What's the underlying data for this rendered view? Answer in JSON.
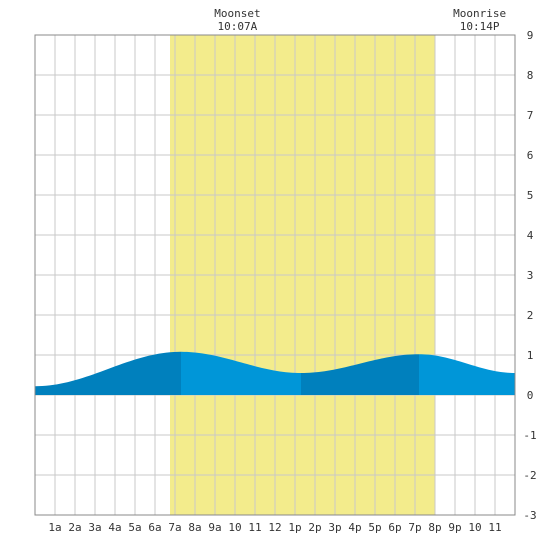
{
  "chart_data": {
    "type": "area",
    "x_tick_labels": [
      "1a",
      "2a",
      "3a",
      "4a",
      "5a",
      "6a",
      "7a",
      "8a",
      "9a",
      "10",
      "11",
      "12",
      "1p",
      "2p",
      "3p",
      "4p",
      "5p",
      "6p",
      "7p",
      "8p",
      "9p",
      "10",
      "11"
    ],
    "y_ticks": [
      9,
      8,
      7,
      6,
      5,
      4,
      3,
      2,
      1,
      0,
      -1,
      -2,
      -3
    ],
    "ylim": [
      -3,
      9
    ],
    "xlim_hours": [
      0,
      24
    ],
    "grid": true,
    "daylight_hours": [
      6.75,
      20.0
    ],
    "top_labels": [
      {
        "title": "Moonset",
        "time": "10:07A",
        "hour": 10.12
      },
      {
        "title": "Moonrise",
        "time": "10:14P",
        "hour": 22.23
      }
    ],
    "tide_extremes": [
      {
        "hour": 0.0,
        "height": 0.22
      },
      {
        "hour": 7.3,
        "height": 1.08
      },
      {
        "hour": 13.3,
        "height": 0.55
      },
      {
        "hour": 19.2,
        "height": 1.02
      },
      {
        "hour": 24.0,
        "height": 0.55
      }
    ],
    "colors": {
      "daylight": "#f3ec8c",
      "tide_fill": "#0096d8",
      "tide_fill_dark": "#0080bd",
      "grid": "#c8c8c8",
      "border": "#888888"
    }
  }
}
